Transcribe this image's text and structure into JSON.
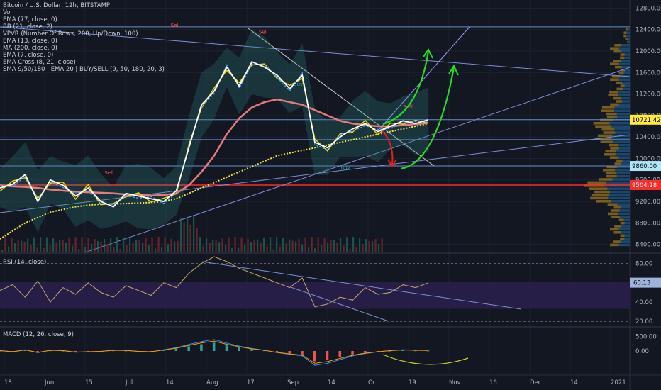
{
  "header": {
    "symbol": "Bitcoin / U.S. Dollar, 12h, BITSTAMP",
    "indicators": [
      "Vol",
      "EMA (77, close, 0)",
      "BB (21, close, 2)",
      "VPVR (Number Of Rows, 200, Up/Down, 100)",
      "EMA (13, close, 0)",
      "MA (200, close, 0)",
      "EMA (7, close, 0)",
      "EMA Cross (8, 21, close)",
      "SMA 9/50/180 | EMA 20 | BUY/SELL (9, 50, 180, 20, 3)"
    ]
  },
  "panes": {
    "rsi_label": "RSI (14, close)",
    "macd_label": "MACD (12, 26, close, 9)"
  },
  "colors": {
    "background": "#131722",
    "grid": "#1e2230",
    "price_line": "#ffffff",
    "bb": "#2e8b86",
    "ema77": "#e8797c",
    "ma200": "#f0e442",
    "ema13": "#4aa3ff",
    "ema7": "#ffd400",
    "rsi_band": "#2a1f4d",
    "rsi_line": "#c8a866",
    "vpvr": "#8a6a1f",
    "vpvr_blue": "#1f4f79",
    "red_level": "#ff2a2a",
    "green_arrow": "#22dd22",
    "red_arrow": "#e81e1e"
  },
  "chart_data": [
    {
      "type": "line",
      "name": "price",
      "ylim": [
        8250,
        12950
      ],
      "yticks": [
        "12800.00",
        "12400.00",
        "12000.00",
        "11600.00",
        "11200.00",
        "10800.00",
        "10400.00",
        "10000.00",
        "9600.00",
        "9200.00",
        "8800.00",
        "8400.00"
      ],
      "xticks": [
        "18",
        "Jun",
        "15",
        "Jul",
        "14",
        "Aug",
        "17",
        "Sep",
        "14",
        "Oct",
        "19",
        "Nov",
        "16",
        "Dec",
        "14",
        "2021"
      ],
      "x": [
        0,
        4,
        8,
        12,
        16,
        20,
        24,
        28,
        32,
        36,
        40,
        44,
        48,
        52,
        56,
        60,
        64,
        68,
        72,
        76,
        80,
        84,
        88,
        92,
        96,
        100,
        104,
        108,
        112,
        116,
        120,
        124,
        128,
        132,
        136
      ],
      "close": [
        9450,
        9520,
        9700,
        9200,
        9600,
        9500,
        9300,
        9450,
        9200,
        9100,
        9350,
        9300,
        9250,
        9200,
        9400,
        10200,
        11000,
        11250,
        11700,
        11350,
        11800,
        11700,
        11550,
        11300,
        11550,
        10300,
        10200,
        10400,
        10550,
        10650,
        10500,
        10600,
        10700,
        10650,
        10721
      ],
      "ema77": [
        9500,
        9480,
        9470,
        9450,
        9420,
        9400,
        9380,
        9370,
        9360,
        9350,
        9330,
        9320,
        9310,
        9320,
        9350,
        9500,
        9750,
        10050,
        10450,
        10750,
        10950,
        11050,
        11100,
        11050,
        11000,
        10900,
        10800,
        10700,
        10650,
        10620,
        10600,
        10600,
        10620,
        10640,
        10660
      ],
      "ma200": [
        8500,
        8650,
        8800,
        8900,
        9000,
        9050,
        9100,
        9130,
        9150,
        9150,
        9160,
        9170,
        9180,
        9200,
        9250,
        9350,
        9450,
        9550,
        9650,
        9750,
        9850,
        9950,
        10050,
        10100,
        10150,
        10200,
        10250,
        10300,
        10350,
        10400,
        10450,
        10500,
        10550,
        10600,
        10650
      ],
      "labels_sell": [
        {
          "x": 56,
          "y": 12450,
          "text": "Sell"
        },
        {
          "x": 84,
          "y": 12320,
          "text": "Sell"
        },
        {
          "x": 130,
          "y": 10930,
          "text": "Sell"
        },
        {
          "x": 35,
          "y": 9700,
          "text": "Sell"
        }
      ],
      "labels_buy": [
        {
          "x": 95,
          "y": 11350,
          "text": "Buy"
        },
        {
          "x": 110,
          "y": 9800,
          "text": "Buy"
        }
      ],
      "price_labels": [
        {
          "value": 10721.42,
          "text": "10721.42",
          "bg": "#ffeb3b",
          "fg": "#000000"
        },
        {
          "value": 9860.0,
          "text": "9860.00",
          "bg": "#aee5f7",
          "fg": "#000000"
        },
        {
          "value": 9504.28,
          "text": "9504.28",
          "bg": "#ff2a2a",
          "fg": "#ffffff"
        }
      ],
      "horizontal_levels": [
        12450,
        10721.42,
        10350,
        9860,
        9504.28
      ]
    },
    {
      "type": "line",
      "name": "RSI",
      "ylim": [
        15,
        90
      ],
      "yticks": [
        "80.00",
        "40.00",
        "20.00"
      ],
      "current_label": "60.13",
      "band": [
        33,
        61
      ],
      "values": [
        52,
        58,
        45,
        62,
        40,
        55,
        48,
        60,
        50,
        45,
        57,
        52,
        47,
        60,
        55,
        70,
        80,
        87,
        82,
        75,
        70,
        65,
        60,
        55,
        65,
        35,
        38,
        45,
        42,
        55,
        48,
        50,
        58,
        55,
        60
      ]
    },
    {
      "type": "bar",
      "name": "MACD",
      "ylim": [
        -800,
        800
      ],
      "yticks": [
        "500.00",
        "0.00"
      ],
      "hist": [
        10,
        -20,
        30,
        -40,
        20,
        10,
        -30,
        -20,
        -10,
        20,
        15,
        -10,
        -20,
        30,
        80,
        160,
        230,
        280,
        190,
        120,
        60,
        20,
        -40,
        -80,
        -120,
        -350,
        -300,
        -210,
        -120,
        -60,
        -20,
        10,
        30,
        20,
        15
      ]
    }
  ]
}
